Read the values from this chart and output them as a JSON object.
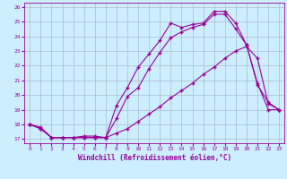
{
  "xlabel": "Windchill (Refroidissement éolien,°C)",
  "bg_color": "#cceeff",
  "line_color": "#990099",
  "grid_color": "#aabbcc",
  "xlim": [
    -0.5,
    23.5
  ],
  "ylim": [
    16.7,
    26.3
  ],
  "xticks": [
    0,
    1,
    2,
    3,
    4,
    5,
    6,
    7,
    8,
    9,
    10,
    11,
    12,
    13,
    14,
    15,
    16,
    17,
    18,
    19,
    20,
    21,
    22,
    23
  ],
  "yticks": [
    17,
    18,
    19,
    20,
    21,
    22,
    23,
    24,
    25,
    26
  ],
  "s1_x": [
    0,
    1,
    2,
    3,
    4,
    5,
    6,
    7,
    8,
    9,
    10,
    11,
    12,
    13,
    14,
    15,
    16,
    17,
    18,
    19,
    20,
    21,
    22,
    23
  ],
  "s1_y": [
    18.0,
    17.7,
    17.1,
    17.1,
    17.1,
    17.1,
    17.1,
    17.1,
    19.3,
    20.5,
    21.9,
    22.8,
    23.7,
    24.9,
    24.6,
    24.8,
    24.9,
    25.7,
    25.7,
    24.9,
    23.4,
    20.8,
    19.0,
    19.0
  ],
  "s2_x": [
    0,
    1,
    2,
    3,
    4,
    5,
    6,
    7,
    8,
    9,
    10,
    11,
    12,
    13,
    14,
    15,
    16,
    17,
    18,
    19,
    20,
    21,
    22,
    23
  ],
  "s2_y": [
    18.0,
    17.7,
    17.1,
    17.1,
    17.1,
    17.1,
    17.1,
    17.1,
    18.4,
    19.9,
    20.5,
    21.8,
    22.9,
    23.9,
    24.3,
    24.6,
    24.8,
    25.5,
    25.5,
    24.5,
    23.4,
    20.7,
    19.5,
    19.0
  ],
  "s3_x": [
    0,
    1,
    2,
    3,
    4,
    5,
    6,
    7,
    8,
    9,
    10,
    11,
    12,
    13,
    14,
    15,
    16,
    17,
    18,
    19,
    20,
    21,
    22,
    23
  ],
  "s3_y": [
    18.0,
    17.8,
    17.1,
    17.1,
    17.1,
    17.2,
    17.2,
    17.1,
    17.4,
    17.7,
    18.2,
    18.7,
    19.2,
    19.8,
    20.3,
    20.8,
    21.4,
    21.9,
    22.5,
    23.0,
    23.3,
    22.5,
    19.4,
    19.0
  ]
}
